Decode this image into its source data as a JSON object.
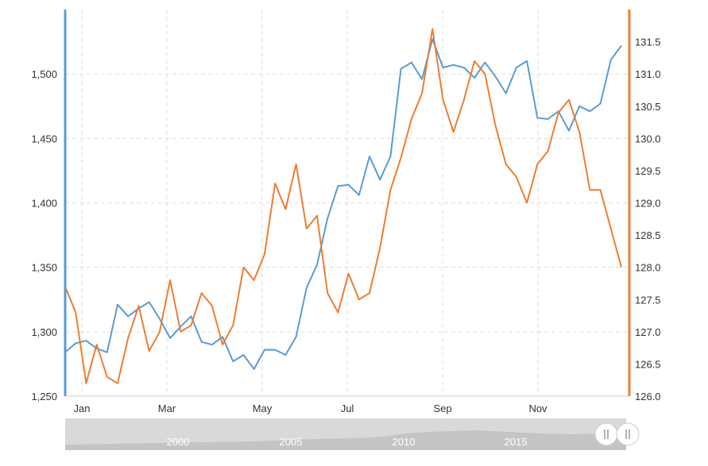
{
  "chart_data": {
    "type": "line",
    "title": "",
    "grid": true,
    "x_tick_labels": [
      "Jan",
      "Mar",
      "May",
      "Jul",
      "Sep",
      "Nov"
    ],
    "left_axis": {
      "ticks": [
        "1,250",
        "1,300",
        "1,350",
        "1,400",
        "1,450",
        "1,500"
      ],
      "ylim": [
        1250,
        1550
      ],
      "color": "#5b9bd5"
    },
    "right_axis": {
      "ticks": [
        "126.0",
        "126.5",
        "127.0",
        "127.5",
        "128.0",
        "128.5",
        "129.0",
        "129.5",
        "130.0",
        "130.5",
        "131.0",
        "131.5"
      ],
      "ylim": [
        126.0,
        132.0
      ],
      "color": "#ed7d31"
    },
    "series": [
      {
        "axis": "left",
        "color": "#5b9bd5",
        "values": [
          1284,
          1291,
          1293,
          1287,
          1284,
          1321,
          1312,
          1318,
          1323,
          1310,
          1295,
          1304,
          1312,
          1292,
          1290,
          1296,
          1277,
          1282,
          1271,
          1286,
          1286,
          1282,
          1296,
          1334,
          1352,
          1388,
          1413,
          1414,
          1406,
          1436,
          1418,
          1436,
          1504,
          1509,
          1496,
          1527,
          1505,
          1507,
          1505,
          1497,
          1509,
          1498,
          1485,
          1505,
          1510,
          1466,
          1465,
          1471,
          1456,
          1475,
          1471,
          1477,
          1511,
          1522
        ]
      },
      {
        "axis": "right",
        "color": "#ed7d31",
        "values": [
          127.7,
          127.3,
          126.2,
          126.8,
          126.3,
          126.2,
          126.9,
          127.4,
          126.7,
          127.0,
          127.8,
          127.0,
          127.1,
          127.6,
          127.4,
          126.8,
          127.1,
          128.0,
          127.8,
          128.2,
          129.3,
          128.9,
          129.6,
          128.6,
          128.8,
          127.6,
          127.3,
          127.9,
          127.5,
          127.6,
          128.3,
          129.2,
          129.7,
          130.3,
          130.7,
          131.7,
          130.6,
          130.1,
          130.6,
          131.2,
          131.0,
          130.2,
          129.6,
          129.4,
          129.0,
          129.6,
          129.8,
          130.4,
          130.6,
          130.1,
          129.2,
          129.2,
          128.6,
          128.0
        ]
      }
    ],
    "navigator": {
      "labels": [
        "2000",
        "2005",
        "2010",
        "2015"
      ]
    }
  }
}
